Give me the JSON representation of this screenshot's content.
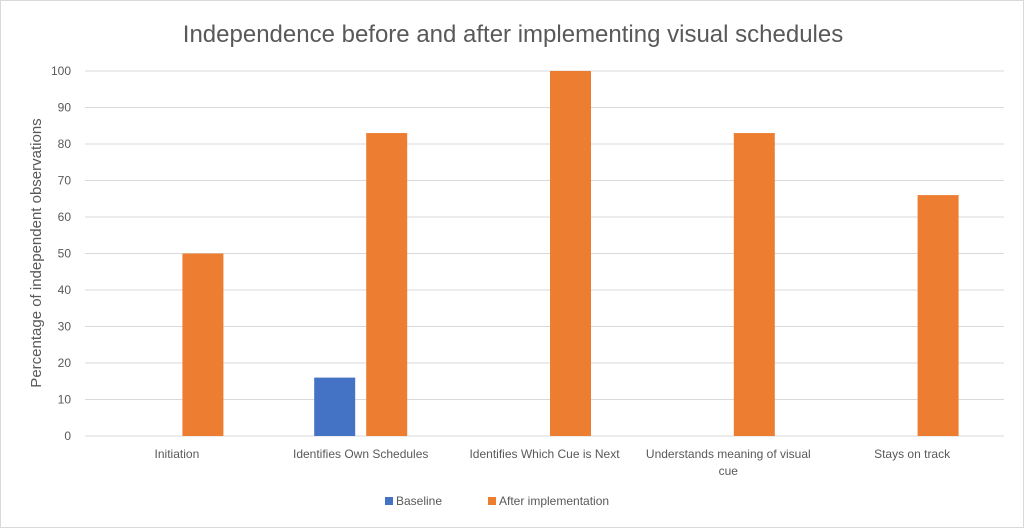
{
  "chart_data": {
    "type": "bar",
    "title": "Independence before and after implementing visual schedules",
    "xlabel": "",
    "ylabel": "Percentage of independent observations",
    "categories": [
      [
        "Initiation"
      ],
      [
        "Identifies Own Schedules"
      ],
      [
        "Identifies Which Cue is Next"
      ],
      [
        "Understands meaning of visual",
        "cue"
      ],
      [
        "Stays on track"
      ]
    ],
    "series": [
      {
        "name": "Baseline",
        "color": "#4472c4",
        "values": [
          0,
          16,
          0,
          0,
          0
        ]
      },
      {
        "name": "After implementation",
        "color": "#ed7d31",
        "values": [
          50,
          83,
          100,
          83,
          66
        ]
      }
    ],
    "ylim": [
      0,
      100
    ],
    "yticks": [
      0,
      10,
      20,
      30,
      40,
      50,
      60,
      70,
      80,
      90,
      100
    ],
    "grid": true,
    "legend": "bottom-center"
  }
}
